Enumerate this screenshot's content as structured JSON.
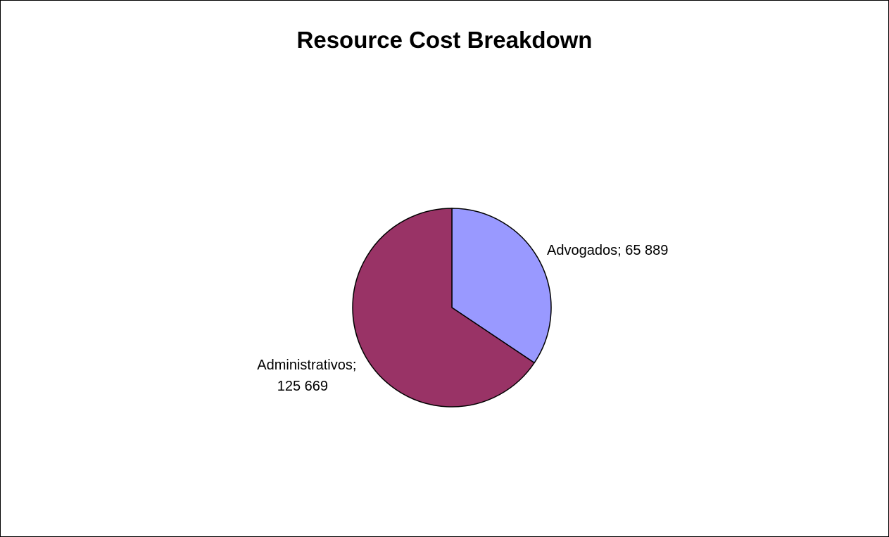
{
  "chart_data": {
    "type": "pie",
    "title": "Resource Cost Breakdown",
    "slices": [
      {
        "label": "Advogados",
        "value": 65889,
        "label_text": "Advogados; 65 889",
        "color": "#9999FF"
      },
      {
        "label": "Administrativos",
        "value": 125669,
        "label_text": "Administrativos; 125 669",
        "color": "#993366"
      }
    ],
    "legend": "none"
  }
}
